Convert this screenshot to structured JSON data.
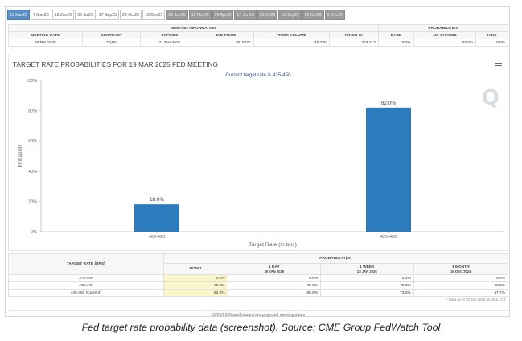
{
  "tabs": [
    {
      "label": "19 Mar25",
      "state": "active"
    },
    {
      "label": "7 May25",
      "state": "normal"
    },
    {
      "label": "18 Jun25",
      "state": "normal"
    },
    {
      "label": "30 Jul25",
      "state": "normal"
    },
    {
      "label": "17 Sep25",
      "state": "normal"
    },
    {
      "label": "29 Oct25",
      "state": "normal"
    },
    {
      "label": "10 Dec25",
      "state": "normal"
    },
    {
      "label": "28 Jan26",
      "state": "disabled"
    },
    {
      "label": "18 Mar26",
      "state": "disabled"
    },
    {
      "label": "29 Apr26",
      "state": "disabled"
    },
    {
      "label": "17 Jun26",
      "state": "disabled"
    },
    {
      "label": "29 Jul26",
      "state": "disabled"
    },
    {
      "label": "16 Sep26",
      "state": "disabled"
    },
    {
      "label": "28 Oct26",
      "state": "disabled"
    },
    {
      "label": "9 Dec26",
      "state": "disabled"
    }
  ],
  "meeting_info": {
    "section_title": "MEETING INFORMATION",
    "prob_title": "PROBABILITIES",
    "headers": [
      "MEETING DATE",
      "CONTRACT",
      "EXPIRES",
      "MID PRICE",
      "PRIOR VOLUME",
      "PRIOR OI"
    ],
    "prob_headers": [
      "EASE",
      "NO CHANGE",
      "HIKE"
    ],
    "row": [
      "19 Mar 2025",
      "ZQH5",
      "31 Mar 2025",
      "95.6875",
      "45,325",
      "254,213"
    ],
    "prob_row": [
      "18.0%",
      "82.0%",
      "0.0%"
    ]
  },
  "chart": {
    "menu_icon": "hamburger-menu-icon",
    "logo": "Q"
  },
  "chart_data": {
    "type": "bar",
    "title": "TARGET RATE PROBABILITIES FOR 19 MAR 2025 FED MEETING",
    "subtitle": "Current target rate is 425-450",
    "xlabel": "Target Rate (in bps)",
    "ylabel": "Probability",
    "categories": [
      "400-425",
      "425-450"
    ],
    "values": [
      18.0,
      82.0
    ],
    "data_labels": [
      "18.0%",
      "82.0%"
    ],
    "ylim": [
      0,
      100
    ],
    "yticks": [
      0,
      20,
      40,
      60,
      80,
      100
    ],
    "ytick_labels": [
      "0%",
      "20%",
      "40%",
      "60%",
      "80%",
      "100%"
    ],
    "grid": false,
    "bar_color": "#2b7bbd"
  },
  "probability_table": {
    "left_header": "TARGET RATE (BPS)",
    "group_header": "PROBABILITY(%)",
    "columns": [
      {
        "label": "NOW *",
        "date": ""
      },
      {
        "label": "1 DAY",
        "date": "29 JAN 2025"
      },
      {
        "label": "1 WEEK",
        "date": "23 JAN 2025"
      },
      {
        "label": "1 MONTH",
        "date": "30 DEC 2024"
      }
    ],
    "rows": [
      {
        "rate": "375-400",
        "values": [
          "0.0%",
          "0.6%",
          "0.3%",
          "5.4%"
        ]
      },
      {
        "rate": "400-425",
        "values": [
          "18.0%",
          "30.9%",
          "26.5%",
          "46.9%"
        ]
      },
      {
        "rate": "425-450 (Current)",
        "values": [
          "82.0%",
          "68.5%",
          "73.2%",
          "47.7%"
        ]
      }
    ],
    "note": "* Data as of 30 Jan 2025 01:49:13 CT"
  },
  "footnote": "01/28/2026 and forward are projected meeting dates",
  "caption": "Fed target rate probability data (screenshot). Source: CME Group FedWatch Tool"
}
